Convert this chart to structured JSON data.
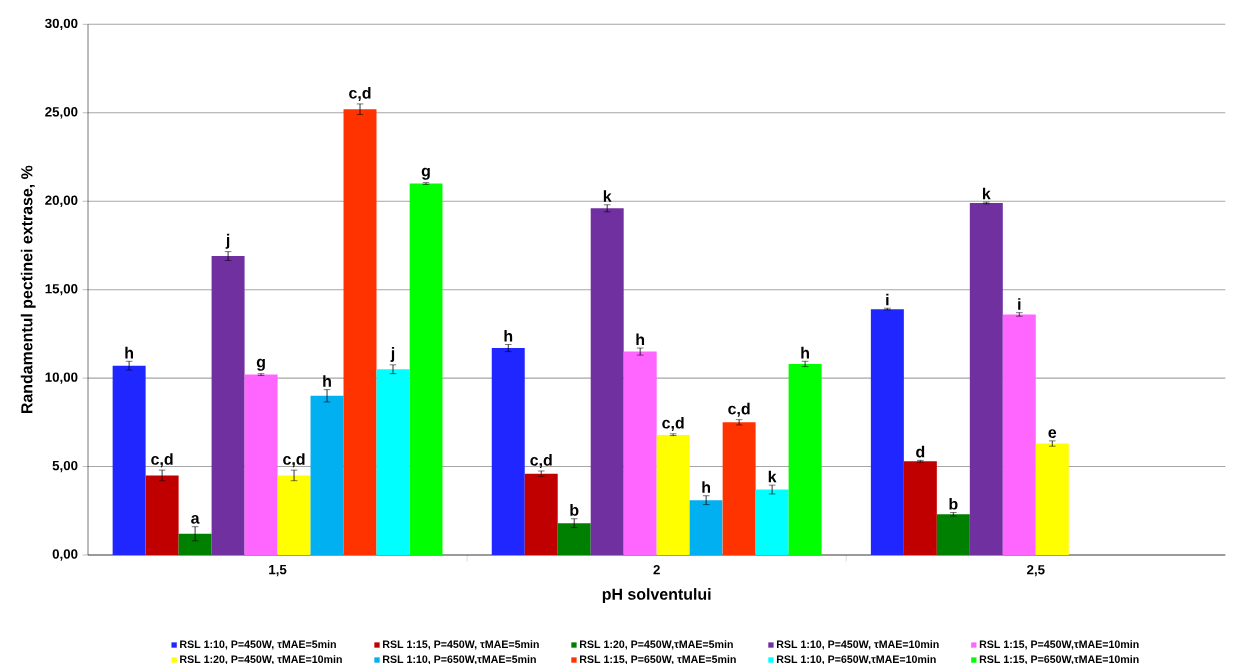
{
  "chart_data": {
    "type": "bar",
    "xlabel": "pH solventului",
    "ylabel": "Randamentul pectinei extrase, %",
    "categories": [
      "1,5",
      "2",
      "2,5"
    ],
    "ylim": [
      0,
      30
    ],
    "yticks": [
      {
        "value": 0,
        "label": "0,00"
      },
      {
        "value": 5,
        "label": "5,00"
      },
      {
        "value": 10,
        "label": "10,00"
      },
      {
        "value": 15,
        "label": "15,00"
      },
      {
        "value": 20,
        "label": "20,00"
      },
      {
        "value": 25,
        "label": "25,00"
      },
      {
        "value": 30,
        "label": "30,00"
      }
    ],
    "grid": "y",
    "legend": "bottom",
    "series": [
      {
        "name": "RSL 1:10, P=450W, τMAE=5min",
        "color": "#1f26ff",
        "values": [
          10.7,
          11.7,
          13.9
        ],
        "errors": [
          0.25,
          0.2,
          0.05
        ],
        "value_labels": [
          "h",
          "h",
          "i"
        ]
      },
      {
        "name": "RSL 1:15, P=450W, τMAE=5min",
        "color": "#c00000",
        "values": [
          4.5,
          4.6,
          5.3
        ],
        "errors": [
          0.3,
          0.15,
          0.05
        ],
        "value_labels": [
          "c,d",
          "c,d",
          "d"
        ]
      },
      {
        "name": "RSL 1:20, P=450W,τMAE=5min",
        "color": "#008000",
        "values": [
          1.2,
          1.8,
          2.3
        ],
        "errors": [
          0.4,
          0.25,
          0.1
        ],
        "value_labels": [
          "a",
          "b",
          "b"
        ]
      },
      {
        "name": "RSL 1:10, P=450W, τMAE=10min",
        "color": "#7030a0",
        "values": [
          16.9,
          19.6,
          19.9
        ],
        "errors": [
          0.25,
          0.2,
          0.05
        ],
        "value_labels": [
          "j",
          "k",
          "k"
        ]
      },
      {
        "name": "RSL 1:15, P=450W,τMAE=10min",
        "color": "#ff66ff",
        "values": [
          10.2,
          11.5,
          13.6
        ],
        "errors": [
          0.05,
          0.2,
          0.1
        ],
        "value_labels": [
          "g",
          "h",
          "i"
        ]
      },
      {
        "name": "RSL 1:20, P=450W, τMAE=10min",
        "color": "#ffff00",
        "values": [
          4.5,
          6.8,
          6.3
        ],
        "errors": [
          0.3,
          0.05,
          0.15
        ],
        "value_labels": [
          "c,d",
          "c,d",
          "e"
        ]
      },
      {
        "name": "RSL 1:10, P=650W,τMAE=5min",
        "color": "#00b0f0",
        "values": [
          9.0,
          3.1,
          null
        ],
        "errors": [
          0.35,
          0.25,
          null
        ],
        "value_labels": [
          "h",
          "h",
          null
        ]
      },
      {
        "name": "RSL 1:15, P=650W, τMAE=5min",
        "color": "#ff3300",
        "values": [
          25.2,
          7.5,
          null
        ],
        "errors": [
          0.3,
          0.15,
          null
        ],
        "value_labels": [
          "c,d",
          "c,d",
          null
        ]
      },
      {
        "name": "RSL 1:10, P=650W,τMAE=10min",
        "color": "#00ffff",
        "values": [
          10.5,
          3.7,
          null
        ],
        "errors": [
          0.25,
          0.25,
          null
        ],
        "value_labels": [
          "j",
          "k",
          null
        ]
      },
      {
        "name": "RSL 1:15, P=650W,τMAE=10min",
        "color": "#00ff00",
        "values": [
          21.0,
          10.8,
          null
        ],
        "errors": [
          0.05,
          0.15,
          null
        ],
        "value_labels": [
          "g",
          "h",
          null
        ]
      }
    ]
  }
}
